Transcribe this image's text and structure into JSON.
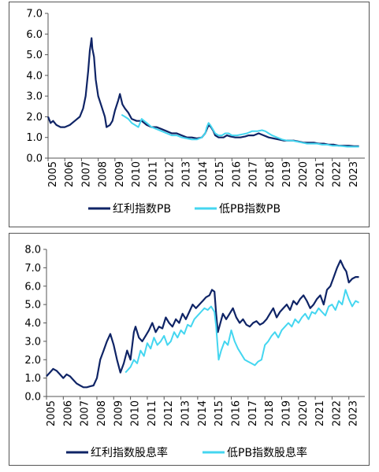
{
  "chart_data": [
    {
      "type": "line",
      "title": "",
      "xlabel": "",
      "ylabel": "",
      "ylim": [
        0.0,
        7.0
      ],
      "yticks": [
        "0.0",
        "1.0",
        "2.0",
        "3.0",
        "4.0",
        "5.0",
        "6.0",
        "7.0"
      ],
      "xticks": [
        "2005",
        "2006",
        "2007",
        "2008",
        "2009",
        "2010",
        "2011",
        "2012",
        "2013",
        "2014",
        "2015",
        "2016",
        "2017",
        "2018",
        "2019",
        "2020",
        "2021",
        "2022",
        "2023"
      ],
      "legend_position": "bottom",
      "series": [
        {
          "name": "红利指数PB",
          "color": "#0f2466",
          "x": [
            2005.0,
            2005.15,
            2005.3,
            2005.5,
            2005.75,
            2006.0,
            2006.3,
            2006.6,
            2006.9,
            2007.1,
            2007.25,
            2007.4,
            2007.5,
            2007.6,
            2007.65,
            2007.75,
            2007.85,
            2008.0,
            2008.2,
            2008.4,
            2008.5,
            2008.7,
            2008.85,
            2009.0,
            2009.2,
            2009.3,
            2009.45,
            2009.6,
            2009.8,
            2010.0,
            2010.3,
            2010.6,
            2010.9,
            2011.2,
            2011.5,
            2011.8,
            2012.1,
            2012.4,
            2012.7,
            2013.0,
            2013.3,
            2013.6,
            2013.9,
            2014.2,
            2014.4,
            2014.5,
            2014.6,
            2014.75,
            2014.9,
            2015.0,
            2015.2,
            2015.35,
            2015.5,
            2015.7,
            2015.9,
            2016.2,
            2016.5,
            2016.8,
            2017.0,
            2017.3,
            2017.6,
            2017.9,
            2018.2,
            2018.5,
            2018.8,
            2019.1,
            2019.4,
            2019.7,
            2020.0,
            2020.3,
            2020.6,
            2020.9,
            2021.2,
            2021.5,
            2021.8,
            2022.1,
            2022.4,
            2022.7,
            2023.0,
            2023.3,
            2023.6
          ],
          "y": [
            2.0,
            1.7,
            1.8,
            1.6,
            1.5,
            1.5,
            1.6,
            1.8,
            2.0,
            2.4,
            3.0,
            4.2,
            5.2,
            5.8,
            5.3,
            4.9,
            3.8,
            3.0,
            2.5,
            2.0,
            1.5,
            1.6,
            1.8,
            2.3,
            2.8,
            3.1,
            2.6,
            2.4,
            2.2,
            1.9,
            1.8,
            1.8,
            1.6,
            1.5,
            1.5,
            1.4,
            1.3,
            1.2,
            1.2,
            1.1,
            1.0,
            1.0,
            0.95,
            1.0,
            1.2,
            1.4,
            1.6,
            1.5,
            1.3,
            1.1,
            1.0,
            1.0,
            1.0,
            1.1,
            1.05,
            1.0,
            1.0,
            1.05,
            1.1,
            1.1,
            1.2,
            1.1,
            1.0,
            0.95,
            0.9,
            0.85,
            0.85,
            0.85,
            0.8,
            0.75,
            0.75,
            0.75,
            0.7,
            0.7,
            0.65,
            0.65,
            0.6,
            0.6,
            0.6,
            0.58,
            0.58
          ]
        },
        {
          "name": "低PB指数PB",
          "color": "#44d6f0",
          "x": [
            2009.4,
            2009.6,
            2009.8,
            2010.0,
            2010.2,
            2010.4,
            2010.6,
            2010.9,
            2011.2,
            2011.5,
            2011.8,
            2012.1,
            2012.4,
            2012.7,
            2013.0,
            2013.3,
            2013.6,
            2013.9,
            2014.2,
            2014.4,
            2014.5,
            2014.6,
            2014.7,
            2014.85,
            2015.0,
            2015.2,
            2015.4,
            2015.6,
            2015.8,
            2016.0,
            2016.3,
            2016.6,
            2016.9,
            2017.2,
            2017.5,
            2017.8,
            2018.0,
            2018.2,
            2018.4,
            2018.7,
            2019.0,
            2019.3,
            2019.6,
            2019.9,
            2020.2,
            2020.5,
            2020.8,
            2021.1,
            2021.4,
            2021.7,
            2022.0,
            2022.3,
            2022.6,
            2022.9,
            2023.2,
            2023.6
          ],
          "y": [
            2.1,
            2.0,
            1.9,
            1.7,
            1.6,
            1.5,
            1.9,
            1.7,
            1.5,
            1.4,
            1.3,
            1.2,
            1.1,
            1.1,
            1.0,
            0.95,
            0.9,
            0.9,
            1.0,
            1.2,
            1.5,
            1.7,
            1.6,
            1.4,
            1.2,
            1.1,
            1.1,
            1.2,
            1.2,
            1.1,
            1.1,
            1.15,
            1.2,
            1.3,
            1.3,
            1.35,
            1.3,
            1.2,
            1.1,
            1.0,
            0.9,
            0.85,
            0.85,
            0.8,
            0.75,
            0.7,
            0.7,
            0.7,
            0.65,
            0.65,
            0.6,
            0.6,
            0.58,
            0.55,
            0.55,
            0.55
          ]
        }
      ]
    },
    {
      "type": "line",
      "title": "",
      "xlabel": "",
      "ylabel": "",
      "ylim": [
        0.0,
        8.0
      ],
      "yticks": [
        "0.0",
        "1.0",
        "2.0",
        "3.0",
        "4.0",
        "5.0",
        "6.0",
        "7.0",
        "8.0"
      ],
      "xticks": [
        "2005",
        "2006",
        "2007",
        "2008",
        "2009",
        "2010",
        "2011",
        "2012",
        "2013",
        "2014",
        "2015",
        "2016",
        "2017",
        "2018",
        "2019",
        "2020",
        "2021",
        "2022",
        "2023"
      ],
      "legend_position": "bottom",
      "series": [
        {
          "name": "红利指数股息率",
          "color": "#0f2466",
          "x": [
            2005.0,
            2005.2,
            2005.4,
            2005.6,
            2005.8,
            2006.0,
            2006.2,
            2006.4,
            2006.6,
            2006.8,
            2007.0,
            2007.2,
            2007.4,
            2007.6,
            2007.8,
            2008.0,
            2008.2,
            2008.4,
            2008.6,
            2008.8,
            2009.0,
            2009.2,
            2009.4,
            2009.6,
            2009.8,
            2010.0,
            2010.2,
            2010.3,
            2010.5,
            2010.7,
            2010.9,
            2011.1,
            2011.3,
            2011.5,
            2011.7,
            2011.9,
            2012.1,
            2012.3,
            2012.5,
            2012.7,
            2012.9,
            2013.1,
            2013.3,
            2013.5,
            2013.7,
            2013.9,
            2014.1,
            2014.3,
            2014.5,
            2014.7,
            2014.85,
            2015.0,
            2015.1,
            2015.2,
            2015.35,
            2015.5,
            2015.7,
            2015.9,
            2016.1,
            2016.3,
            2016.5,
            2016.7,
            2016.9,
            2017.1,
            2017.3,
            2017.5,
            2017.7,
            2017.9,
            2018.1,
            2018.3,
            2018.5,
            2018.7,
            2018.9,
            2019.1,
            2019.3,
            2019.5,
            2019.7,
            2019.9,
            2020.1,
            2020.3,
            2020.5,
            2020.7,
            2020.9,
            2021.1,
            2021.3,
            2021.5,
            2021.7,
            2021.9,
            2022.1,
            2022.3,
            2022.5,
            2022.7,
            2022.85,
            2023.0,
            2023.2,
            2023.4,
            2023.6
          ],
          "y": [
            1.1,
            1.3,
            1.5,
            1.4,
            1.2,
            1.0,
            1.2,
            1.1,
            0.9,
            0.7,
            0.6,
            0.5,
            0.5,
            0.55,
            0.6,
            1.0,
            2.0,
            2.5,
            3.0,
            3.4,
            2.8,
            2.0,
            1.3,
            1.8,
            2.5,
            2.0,
            3.5,
            3.8,
            3.2,
            3.0,
            3.3,
            3.6,
            4.0,
            3.5,
            3.8,
            3.7,
            4.3,
            4.0,
            3.8,
            4.2,
            4.0,
            4.5,
            4.2,
            4.6,
            5.0,
            4.8,
            5.0,
            5.2,
            5.4,
            5.5,
            5.8,
            5.7,
            4.5,
            3.5,
            4.0,
            4.5,
            4.2,
            4.5,
            4.8,
            4.3,
            4.0,
            4.2,
            3.9,
            3.8,
            4.0,
            4.1,
            3.9,
            4.0,
            4.2,
            4.5,
            4.8,
            4.3,
            4.6,
            4.8,
            5.0,
            4.7,
            5.2,
            5.0,
            5.3,
            5.5,
            5.2,
            4.8,
            5.0,
            5.3,
            5.5,
            5.0,
            5.8,
            6.0,
            6.5,
            7.0,
            7.4,
            7.0,
            6.8,
            6.2,
            6.4,
            6.5,
            6.5
          ]
        },
        {
          "name": "低PB指数股息率",
          "color": "#44d6f0",
          "x": [
            2009.7,
            2010.0,
            2010.2,
            2010.4,
            2010.6,
            2010.8,
            2011.0,
            2011.2,
            2011.4,
            2011.6,
            2011.8,
            2012.0,
            2012.2,
            2012.4,
            2012.6,
            2012.8,
            2013.0,
            2013.2,
            2013.4,
            2013.6,
            2013.8,
            2014.0,
            2014.2,
            2014.4,
            2014.6,
            2014.8,
            2015.0,
            2015.1,
            2015.25,
            2015.4,
            2015.6,
            2015.8,
            2016.0,
            2016.2,
            2016.4,
            2016.6,
            2016.8,
            2017.0,
            2017.2,
            2017.4,
            2017.6,
            2017.8,
            2018.0,
            2018.2,
            2018.4,
            2018.6,
            2018.8,
            2019.0,
            2019.2,
            2019.4,
            2019.6,
            2019.8,
            2020.0,
            2020.2,
            2020.4,
            2020.6,
            2020.8,
            2021.0,
            2021.2,
            2021.4,
            2021.6,
            2021.8,
            2022.0,
            2022.2,
            2022.4,
            2022.6,
            2022.8,
            2023.0,
            2023.2,
            2023.4,
            2023.6
          ],
          "y": [
            1.3,
            1.6,
            2.0,
            1.8,
            2.5,
            2.2,
            2.9,
            2.6,
            3.2,
            2.8,
            3.0,
            3.3,
            2.8,
            3.0,
            3.5,
            3.2,
            3.6,
            3.4,
            3.9,
            3.8,
            4.2,
            4.4,
            4.6,
            4.8,
            4.7,
            4.9,
            4.6,
            3.8,
            2.0,
            2.5,
            3.0,
            2.8,
            3.6,
            3.0,
            2.6,
            2.3,
            2.0,
            1.9,
            1.8,
            1.7,
            1.9,
            2.0,
            2.8,
            3.0,
            3.3,
            3.5,
            3.2,
            3.6,
            3.8,
            4.0,
            3.8,
            4.2,
            4.0,
            4.3,
            4.5,
            4.2,
            4.6,
            4.5,
            4.8,
            4.6,
            4.4,
            4.9,
            5.0,
            4.7,
            5.2,
            5.0,
            5.8,
            5.3,
            4.9,
            5.2,
            5.1
          ]
        }
      ]
    }
  ]
}
